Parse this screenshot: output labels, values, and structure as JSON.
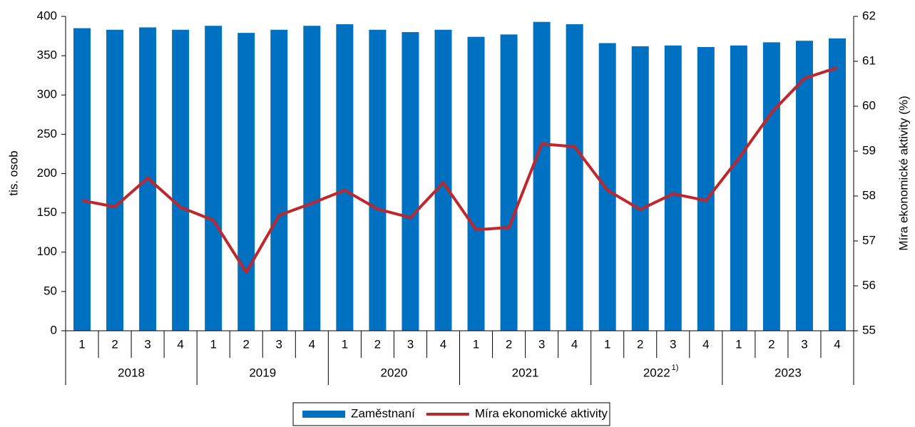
{
  "chart_data": {
    "type": "bar_line",
    "categories": [
      "1",
      "2",
      "3",
      "4",
      "1",
      "2",
      "3",
      "4",
      "1",
      "2",
      "3",
      "4",
      "1",
      "2",
      "3",
      "4",
      "1",
      "2",
      "3",
      "4",
      "1",
      "2",
      "3",
      "4"
    ],
    "groups": [
      {
        "label": "2018"
      },
      {
        "label": "2019"
      },
      {
        "label": "2020"
      },
      {
        "label": "2021"
      },
      {
        "label": "2022",
        "note": "1)"
      },
      {
        "label": "2023"
      }
    ],
    "ylabel": "tis. osob",
    "y2label": "Míra ekonomické aktivity (%)",
    "ylim": [
      0,
      400
    ],
    "yticks": [
      0,
      50,
      100,
      150,
      200,
      250,
      300,
      350,
      400
    ],
    "y2lim": [
      55,
      62
    ],
    "y2ticks": [
      55,
      56,
      57,
      58,
      59,
      60,
      61,
      62
    ],
    "series": [
      {
        "name": "Zaměstnaní",
        "type": "bar",
        "color": "#0070c0",
        "values": [
          385,
          383,
          386,
          383,
          388,
          379,
          383,
          388,
          390,
          383,
          380,
          383,
          374,
          377,
          393,
          390,
          366,
          362,
          363,
          361,
          363,
          367,
          369,
          372
        ]
      },
      {
        "name": "Míra ekonomické aktivity",
        "type": "line",
        "axis": "y2",
        "color": "#c0272d",
        "values": [
          57.9,
          57.76,
          58.4,
          57.75,
          57.46,
          56.3,
          57.57,
          57.84,
          58.13,
          57.71,
          57.52,
          58.3,
          57.25,
          57.3,
          59.16,
          59.1,
          58.13,
          57.7,
          58.05,
          57.9,
          58.84,
          59.86,
          60.62,
          60.86
        ]
      }
    ],
    "legend": "bottom"
  }
}
